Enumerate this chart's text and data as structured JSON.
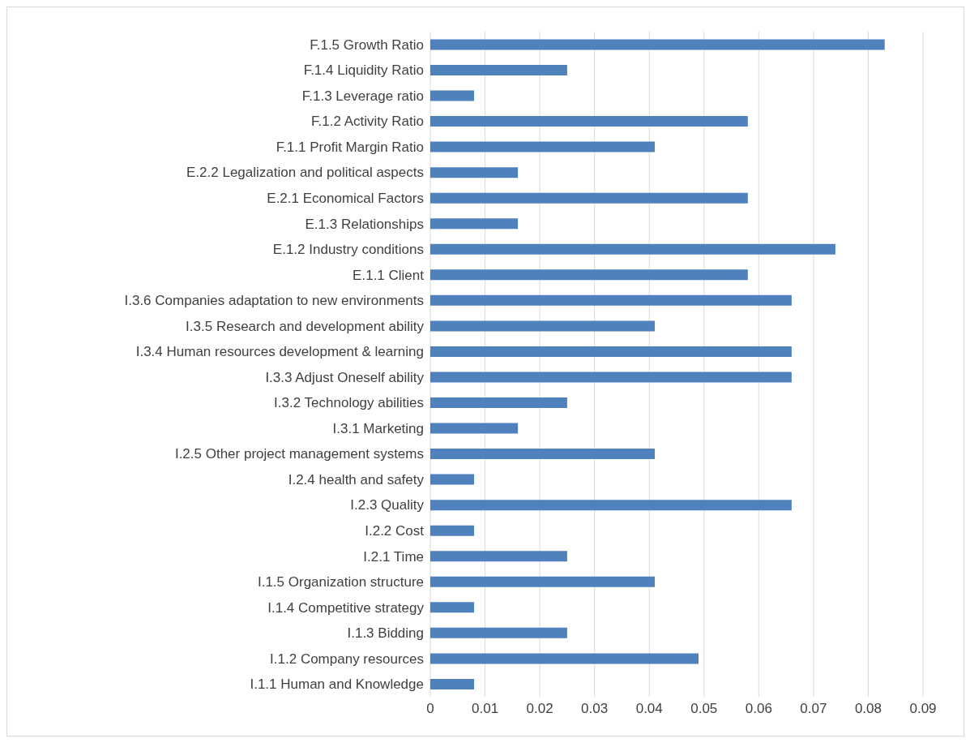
{
  "chart_data": {
    "type": "bar",
    "orientation": "horizontal",
    "categories": [
      "F.1.5 Growth Ratio",
      "F.1.4 Liquidity Ratio",
      "F.1.3 Leverage ratio",
      "F.1.2 Activity Ratio",
      "F.1.1 Profit Margin Ratio",
      "E.2.2 Legalization and political aspects",
      "E.2.1 Economical Factors",
      "E.1.3 Relationships",
      "E.1.2 Industry conditions",
      "E.1.1 Client",
      "I.3.6 Companies adaptation to new environments",
      "I.3.5 Research and development ability",
      "I.3.4 Human resources development & learning",
      "I.3.3 Adjust Oneself ability",
      "I.3.2 Technology abilities",
      "I.3.1 Marketing",
      "I.2.5 Other project management systems",
      "I.2.4 health and safety",
      "I.2.3 Quality",
      "I.2.2 Cost",
      "I.2.1 Time",
      "I.1.5 Organization structure",
      "I.1.4 Competitive strategy",
      "I.1.3 Bidding",
      "I.1.2 Company resources",
      "I.1.1 Human and Knowledge"
    ],
    "values": [
      0.083,
      0.025,
      0.008,
      0.058,
      0.041,
      0.016,
      0.058,
      0.016,
      0.074,
      0.058,
      0.066,
      0.041,
      0.066,
      0.066,
      0.025,
      0.016,
      0.041,
      0.008,
      0.066,
      0.008,
      0.025,
      0.041,
      0.008,
      0.025,
      0.049,
      0.008
    ],
    "color": "#4f81bd",
    "xlim": [
      0,
      0.09
    ],
    "xticks": [
      0,
      0.01,
      0.02,
      0.03,
      0.04,
      0.05,
      0.06,
      0.07,
      0.08,
      0.09
    ],
    "grid": "x"
  }
}
